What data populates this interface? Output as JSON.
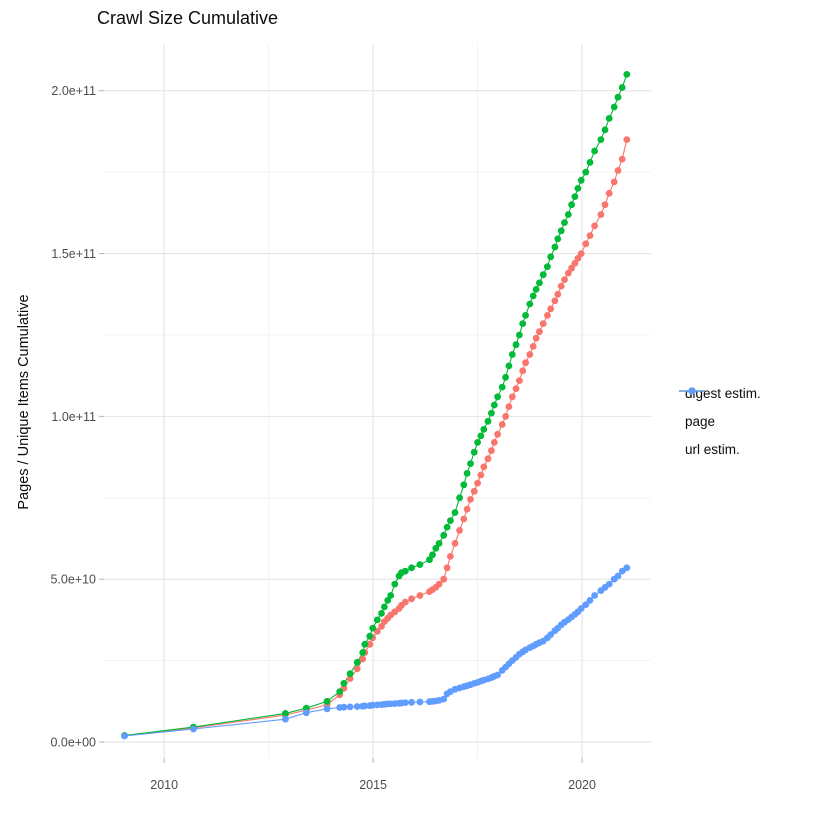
{
  "chart_data": {
    "type": "scatter",
    "title": "Crawl Size Cumulative",
    "xlabel": "",
    "ylabel": "Pages / Unique Items Cumulative",
    "grid": true,
    "legend_position": "right",
    "x_range": [
      2008.56,
      2021.65
    ],
    "y_range": [
      -4900000000.0,
      214350000000.0
    ],
    "x_ticks": {
      "values": [
        2010,
        2015,
        2020
      ],
      "labels": [
        "2010",
        "2015",
        "2020"
      ]
    },
    "x_minor": [
      2012.5,
      2017.5
    ],
    "y_ticks": {
      "values": [
        0,
        50000000000.0,
        100000000000.0,
        150000000000.0,
        200000000000.0
      ],
      "labels": [
        "0.0e+00",
        "5.0e+10",
        "1.0e+11",
        "1.5e+11",
        "2.0e+11"
      ]
    },
    "y_minor": [
      25000000000.0,
      75000000000.0,
      125000000000.0,
      175000000000.0
    ],
    "x": [
      2009.05,
      2010.7,
      2012.9,
      2013.4,
      2013.9,
      2014.2,
      2014.3,
      2014.45,
      2014.62,
      2014.75,
      2014.8,
      2014.92,
      2014.99,
      2015.1,
      2015.2,
      2015.27,
      2015.35,
      2015.42,
      2015.52,
      2015.62,
      2015.68,
      2015.77,
      2015.92,
      2016.12,
      2016.35,
      2016.42,
      2016.5,
      2016.58,
      2016.69,
      2016.77,
      2016.85,
      2016.96,
      2017.07,
      2017.17,
      2017.25,
      2017.33,
      2017.42,
      2017.5,
      2017.58,
      2017.65,
      2017.75,
      2017.83,
      2017.9,
      2017.98,
      2018.09,
      2018.17,
      2018.25,
      2018.33,
      2018.42,
      2018.5,
      2018.58,
      2018.65,
      2018.75,
      2018.83,
      2018.9,
      2018.98,
      2019.07,
      2019.17,
      2019.25,
      2019.35,
      2019.42,
      2019.5,
      2019.58,
      2019.67,
      2019.75,
      2019.83,
      2019.9,
      2019.98,
      2020.09,
      2020.19,
      2020.3,
      2020.45,
      2020.55,
      2020.65,
      2020.77,
      2020.86,
      2020.96,
      2021.07
    ],
    "series": [
      {
        "name": "digest estim.",
        "color": "#F8766D",
        "values": [
          2000000000.0,
          4300000000.0,
          8300000000.0,
          9800000000.0,
          11500000000.0,
          14500000000.0,
          16500000000.0,
          19500000000.0,
          22500000000.0,
          25500000000.0,
          27500000000.0,
          30000000000.0,
          32000000000.0,
          34000000000.0,
          35500000000.0,
          37000000000.0,
          38000000000.0,
          39000000000.0,
          40000000000.0,
          41000000000.0,
          42000000000.0,
          43000000000.0,
          44000000000.0,
          45000000000.0,
          46200000000.0,
          46800000000.0,
          47500000000.0,
          48500000000.0,
          50000000000.0,
          53500000000.0,
          57000000000.0,
          61000000000.0,
          65000000000.0,
          68500000000.0,
          71500000000.0,
          74500000000.0,
          77000000000.0,
          79500000000.0,
          82000000000.0,
          84500000000.0,
          87000000000.0,
          89500000000.0,
          92000000000.0,
          94500000000.0,
          97500000000.0,
          100000000000.0,
          103000000000.0,
          106000000000.0,
          108500000000.0,
          111000000000.0,
          114000000000.0,
          116500000000.0,
          119000000000.0,
          121500000000.0,
          124000000000.0,
          126000000000.0,
          128500000000.0,
          131000000000.0,
          133000000000.0,
          135500000000.0,
          137500000000.0,
          140000000000.0,
          142000000000.0,
          144000000000.0,
          145500000000.0,
          147000000000.0,
          148500000000.0,
          150000000000.0,
          153000000000.0,
          155500000000.0,
          158500000000.0,
          162000000000.0,
          165000000000.0,
          168500000000.0,
          172000000000.0,
          175500000000.0,
          179000000000.0,
          185000000000.0
        ]
      },
      {
        "name": "page",
        "color": "#00BA38",
        "values": [
          2000000000.0,
          4600000000.0,
          8800000000.0,
          10400000000.0,
          12500000000.0,
          15500000000.0,
          18000000000.0,
          21000000000.0,
          24500000000.0,
          27500000000.0,
          30000000000.0,
          32500000000.0,
          35000000000.0,
          37500000000.0,
          39500000000.0,
          41500000000.0,
          43500000000.0,
          45000000000.0,
          48500000000.0,
          51000000000.0,
          52000000000.0,
          52500000000.0,
          53500000000.0,
          54500000000.0,
          56000000000.0,
          57500000000.0,
          59500000000.0,
          61000000000.0,
          63500000000.0,
          66000000000.0,
          68000000000.0,
          70500000000.0,
          75000000000.0,
          79000000000.0,
          82500000000.0,
          85500000000.0,
          89000000000.0,
          92000000000.0,
          94000000000.0,
          96000000000.0,
          98500000000.0,
          101000000000.0,
          103500000000.0,
          106000000000.0,
          109000000000.0,
          112000000000.0,
          115500000000.0,
          119000000000.0,
          122000000000.0,
          125000000000.0,
          128500000000.0,
          131000000000.0,
          134500000000.0,
          137000000000.0,
          139000000000.0,
          141000000000.0,
          143500000000.0,
          146000000000.0,
          149000000000.0,
          152000000000.0,
          154500000000.0,
          157000000000.0,
          159500000000.0,
          162000000000.0,
          165000000000.0,
          167500000000.0,
          170000000000.0,
          172500000000.0,
          175000000000.0,
          178000000000.0,
          181500000000.0,
          185000000000.0,
          188000000000.0,
          191500000000.0,
          195000000000.0,
          198000000000.0,
          201000000000.0,
          205000000000.0
        ]
      },
      {
        "name": "url estim.",
        "color": "#619CFF",
        "values": [
          1850000000.0,
          4000000000.0,
          7000000000.0,
          9000000000.0,
          10200000000.0,
          10600000000.0,
          10700000000.0,
          10800000000.0,
          10900000000.0,
          11000000000.0,
          11100000000.0,
          11200000000.0,
          11300000000.0,
          11400000000.0,
          11500000000.0,
          11600000000.0,
          11700000000.0,
          11700000000.0,
          11800000000.0,
          11900000000.0,
          12000000000.0,
          12100000000.0,
          12200000000.0,
          12300000000.0,
          12400000000.0,
          12500000000.0,
          12600000000.0,
          12800000000.0,
          13200000000.0,
          14800000000.0,
          15500000000.0,
          16200000000.0,
          16600000000.0,
          17000000000.0,
          17300000000.0,
          17600000000.0,
          18000000000.0,
          18300000000.0,
          18700000000.0,
          19000000000.0,
          19400000000.0,
          19800000000.0,
          20200000000.0,
          20600000000.0,
          22000000000.0,
          23000000000.0,
          24000000000.0,
          25000000000.0,
          26000000000.0,
          27000000000.0,
          27700000000.0,
          28300000000.0,
          29000000000.0,
          29500000000.0,
          30000000000.0,
          30500000000.0,
          31000000000.0,
          32000000000.0,
          33000000000.0,
          34200000000.0,
          35000000000.0,
          36000000000.0,
          36800000000.0,
          37600000000.0,
          38400000000.0,
          39200000000.0,
          40000000000.0,
          41000000000.0,
          42200000000.0,
          43500000000.0,
          45000000000.0,
          46500000000.0,
          47500000000.0,
          48500000000.0,
          50000000000.0,
          51000000000.0,
          52500000000.0,
          53500000000.0
        ]
      }
    ],
    "style": {
      "grid_major_color": "#e4e4e4",
      "grid_minor_color": "#f0f0f0",
      "tick_color": "#b3b3b3",
      "axis_text_color": "#4d4d4d",
      "point_radius": 3.4
    }
  }
}
